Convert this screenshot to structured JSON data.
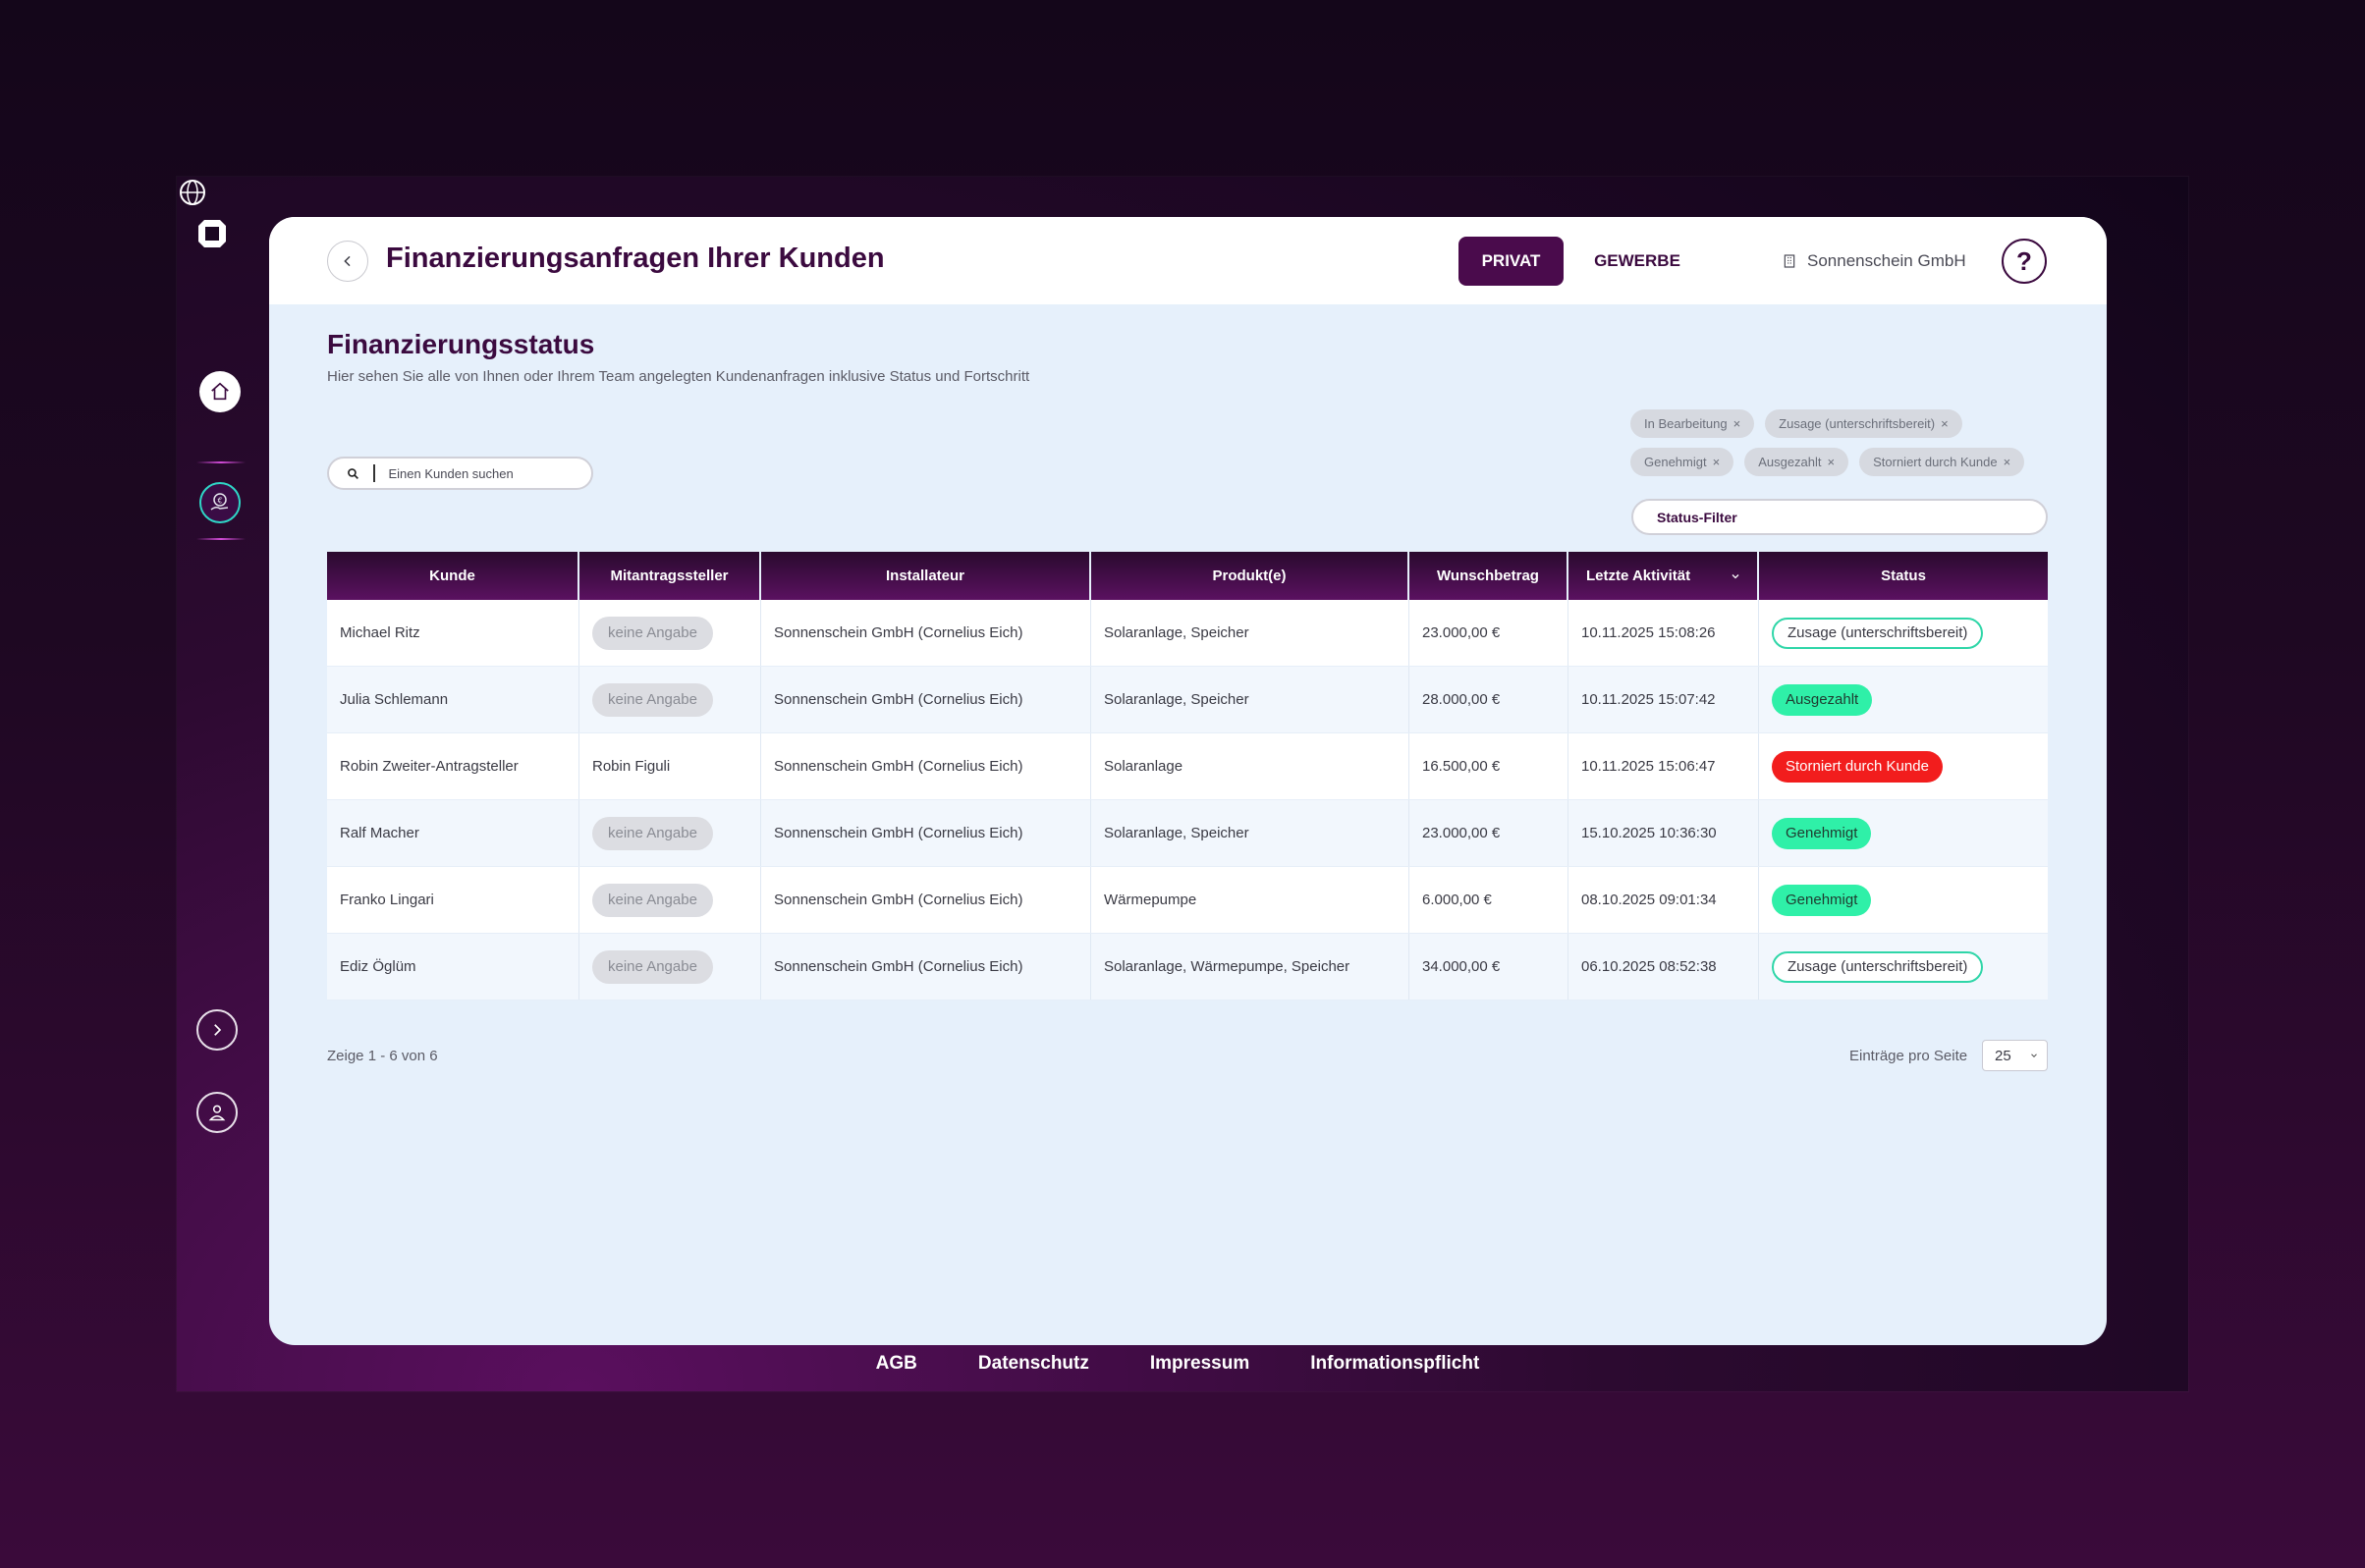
{
  "header": {
    "title": "Finanzierungsanfragen Ihrer Kunden",
    "tab_privat": "PRIVAT",
    "tab_gewerbe": "GEWERBE",
    "company": "Sonnenschein GmbH",
    "help": "?"
  },
  "section": {
    "title": "Finanzierungsstatus",
    "subtitle": "Hier sehen Sie alle von Ihnen oder Ihrem Team angelegten Kundenanfragen inklusive Status und Fortschritt"
  },
  "filters": {
    "chips": [
      "In Bearbeitung",
      "Zusage (unterschriftsbereit)",
      "Genehmigt",
      "Ausgezahlt",
      "Storniert durch Kunde"
    ],
    "remove_glyph": "×",
    "status_filter_label": "Status-Filter"
  },
  "search": {
    "placeholder": "Einen Kunden suchen"
  },
  "table": {
    "columns": [
      "Kunde",
      "Mitantragssteller",
      "Installateur",
      "Produkt(e)",
      "Wunschbetrag",
      "Letzte Aktivität",
      "Status"
    ],
    "rows": [
      {
        "kunde": "Michael Ritz",
        "mit": "keine Angabe",
        "inst": "Sonnenschein GmbH (Cornelius Eich)",
        "prod": "Solaranlage, Speicher",
        "betrag": "23.000,00 €",
        "akt": "10.11.2025 15:08:26",
        "status": "Zusage (unterschriftsbereit)",
        "status_type": "outline"
      },
      {
        "kunde": "Julia Schlemann",
        "mit": "keine Angabe",
        "inst": "Sonnenschein GmbH (Cornelius Eich)",
        "prod": "Solaranlage, Speicher",
        "betrag": "28.000,00 €",
        "akt": "10.11.2025 15:07:42",
        "status": "Ausgezahlt",
        "status_type": "green"
      },
      {
        "kunde": "Robin Zweiter-Antragsteller",
        "mit": "Robin Figuli",
        "inst": "Sonnenschein GmbH (Cornelius Eich)",
        "prod": "Solaranlage",
        "betrag": "16.500,00 €",
        "akt": "10.11.2025 15:06:47",
        "status": "Storniert durch Kunde",
        "status_type": "red"
      },
      {
        "kunde": "Ralf Macher",
        "mit": "keine Angabe",
        "inst": "Sonnenschein GmbH (Cornelius Eich)",
        "prod": "Solaranlage, Speicher",
        "betrag": "23.000,00 €",
        "akt": "15.10.2025 10:36:30",
        "status": "Genehmigt",
        "status_type": "green"
      },
      {
        "kunde": "Franko Lingari",
        "mit": "keine Angabe",
        "inst": "Sonnenschein GmbH (Cornelius Eich)",
        "prod": "Wärmepumpe",
        "betrag": "6.000,00 €",
        "akt": "08.10.2025 09:01:34",
        "status": "Genehmigt",
        "status_type": "green"
      },
      {
        "kunde": "Ediz Öglüm",
        "mit": "keine Angabe",
        "inst": "Sonnenschein GmbH (Cornelius Eich)",
        "prod": "Solaranlage, Wärmepumpe, Speicher",
        "betrag": "34.000,00 €",
        "akt": "06.10.2025 08:52:38",
        "status": "Zusage (unterschriftsbereit)",
        "status_type": "outline"
      }
    ]
  },
  "pagination": {
    "summary": "Zeige 1 - 6 von 6",
    "per_page_label": "Einträge pro Seite",
    "per_page_value": "25"
  },
  "footer_links": [
    "AGB",
    "Datenschutz",
    "Impressum",
    "Informationspflicht"
  ],
  "icons": {
    "logo": "logo-icon",
    "home": "home-icon",
    "money": "euro-hand-icon",
    "expand": "chevron-right-icon",
    "user": "user-icon",
    "www": "globe-www-icon",
    "back": "chevron-left-icon",
    "company": "building-icon",
    "search": "search-icon",
    "sort": "chevron-down-icon"
  },
  "colors": {
    "brand": "#4a0b4c",
    "accent": "#2fd6c7",
    "success": "#2ff0a8",
    "danger": "#f21d1d"
  }
}
